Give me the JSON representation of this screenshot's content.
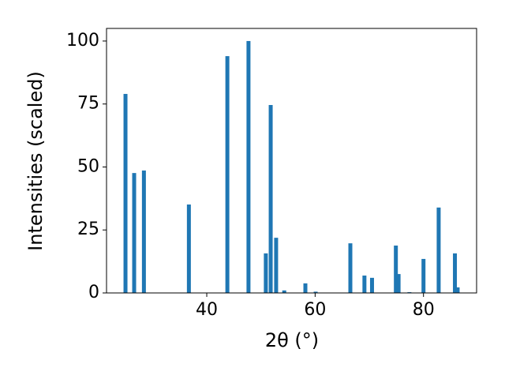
{
  "chart_data": {
    "type": "bar",
    "xlabel": "2θ (°)",
    "ylabel": "Intensities (scaled)",
    "color": "#1f77b4",
    "x": [
      25.0,
      26.6,
      28.4,
      36.7,
      43.8,
      47.7,
      50.9,
      51.8,
      52.8,
      54.3,
      58.2,
      60.1,
      66.5,
      69.1,
      70.5,
      74.9,
      75.4,
      77.4,
      80.0,
      82.8,
      85.8,
      86.3
    ],
    "values": [
      79.0,
      47.6,
      48.6,
      35.1,
      94.0,
      100,
      15.7,
      74.6,
      21.9,
      1.0,
      3.8,
      0.5,
      19.7,
      6.9,
      6.0,
      18.8,
      7.5,
      0.3,
      13.5,
      33.9,
      15.7,
      2.2
    ],
    "xlim": [
      21.5,
      89.8
    ],
    "ylim": [
      0,
      105
    ],
    "xticks": [
      40,
      60,
      80
    ],
    "yticks": [
      0,
      25,
      50,
      75,
      100
    ],
    "grid": false
  }
}
